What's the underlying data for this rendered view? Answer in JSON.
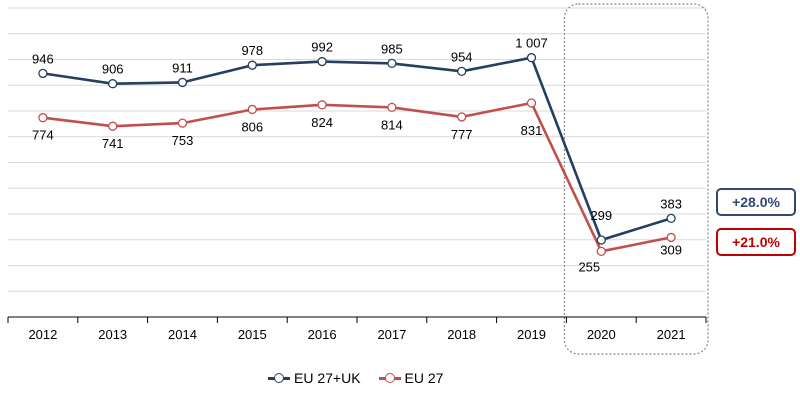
{
  "chart_data": {
    "type": "line",
    "categories": [
      "2012",
      "2013",
      "2014",
      "2015",
      "2016",
      "2017",
      "2018",
      "2019",
      "2020",
      "2021"
    ],
    "series": [
      {
        "name": "EU 27+UK",
        "color": "#243f60",
        "values": [
          946,
          906,
          911,
          978,
          992,
          985,
          954,
          1007,
          299,
          383
        ],
        "labels": [
          "946",
          "906",
          "911",
          "978",
          "992",
          "985",
          "954",
          "1 007",
          "299",
          "383"
        ]
      },
      {
        "name": "EU 27",
        "color": "#c0504d",
        "values": [
          774,
          741,
          753,
          806,
          824,
          814,
          777,
          831,
          255,
          309
        ],
        "labels": [
          "774",
          "741",
          "753",
          "806",
          "824",
          "814",
          "777",
          "831",
          "255",
          "309"
        ]
      }
    ],
    "ylim": [
      0,
      1200
    ],
    "grid": true,
    "highlight_categories": [
      "2020",
      "2021"
    ],
    "legend_position": "bottom"
  },
  "badges": [
    {
      "text": "+28.0%",
      "color": "#2e4a73"
    },
    {
      "text": "+21.0%",
      "color": "#c00000"
    }
  ]
}
